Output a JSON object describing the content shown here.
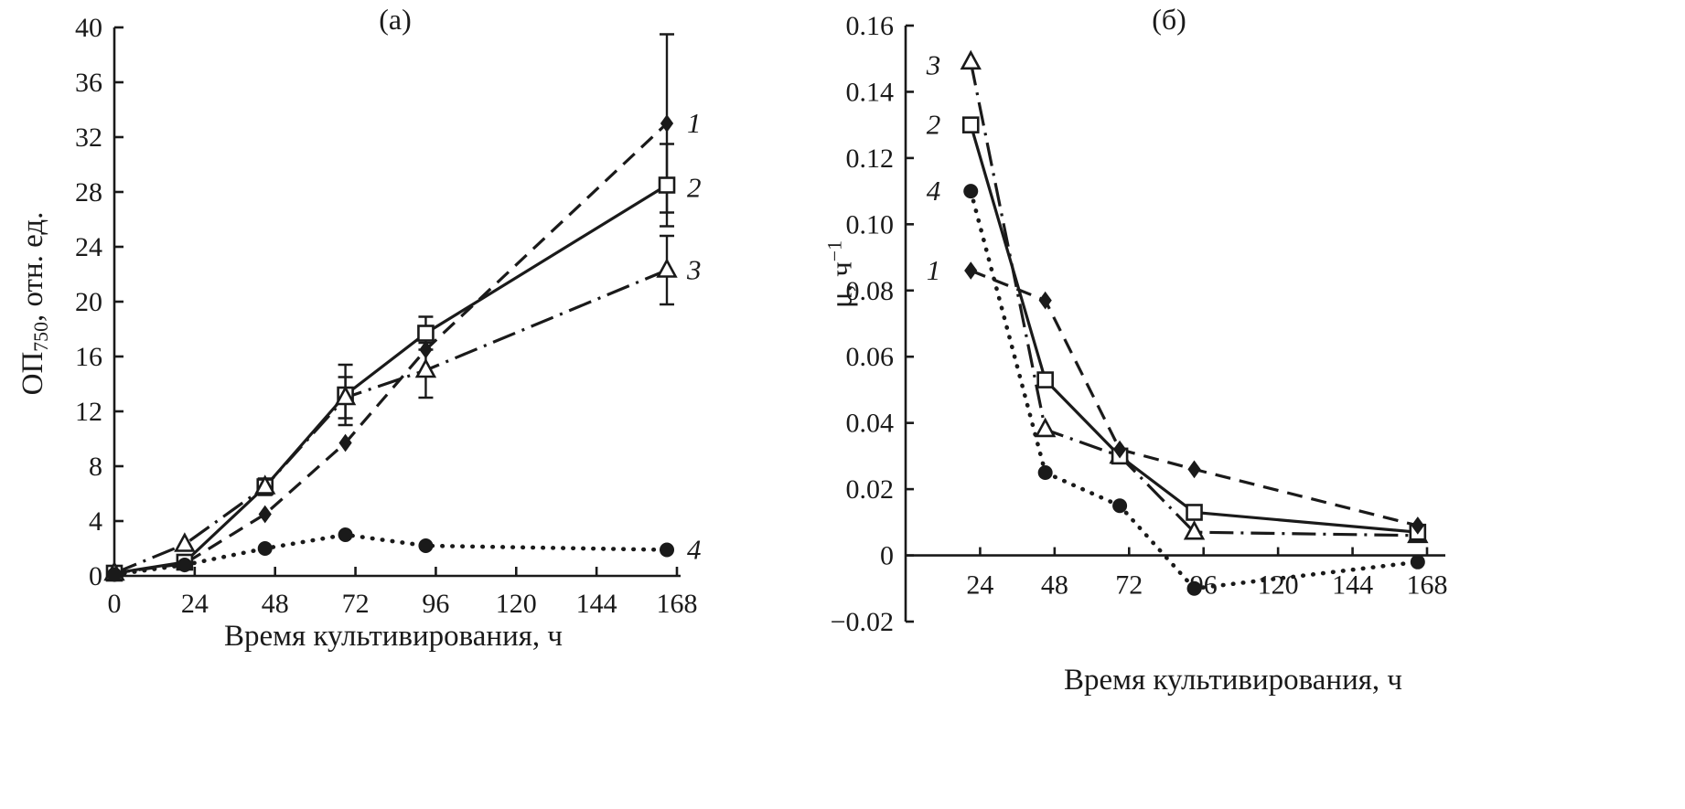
{
  "figure": {
    "panels": [
      {
        "title": "(а)",
        "xlabel": "Время культивирования, ч",
        "ylabel": {
          "main": "ОП",
          "sub": "750",
          "rest": ", отн. ед."
        }
      },
      {
        "title": "(б)",
        "xlabel": "Время культивирования, ч",
        "ylabel": {
          "main": "μ, ч",
          "sup": "−1"
        }
      }
    ]
  },
  "chart_data": [
    {
      "type": "line",
      "panel": "(а)",
      "title": "(а)",
      "xlabel": "Время культивирования, ч",
      "ylabel": "ОП750, отн. ед.",
      "xlim": [
        0,
        168
      ],
      "ylim": [
        0,
        40
      ],
      "grid": false,
      "legend": "series numbers at right ends of curves",
      "xticks": [
        0,
        24,
        48,
        72,
        96,
        120,
        144,
        168
      ],
      "xtick_labels": [
        "0",
        "24",
        "48",
        "72",
        "96",
        "120",
        "144",
        "168"
      ],
      "yticks": [
        0,
        4,
        8,
        12,
        16,
        20,
        24,
        28,
        32,
        36,
        40
      ],
      "ytick_labels": [
        "0",
        "4",
        "8",
        "12",
        "16",
        "20",
        "24",
        "28",
        "32",
        "36",
        "40"
      ],
      "x": [
        0,
        21,
        45,
        69,
        93,
        165
      ],
      "series": [
        {
          "name": "1",
          "marker": "diamond-filled",
          "line": "dashed",
          "values": [
            0.2,
            0.9,
            4.5,
            9.7,
            16.5,
            33.0
          ],
          "err": [
            0,
            0,
            0,
            0,
            0,
            6.5
          ],
          "label_pos": [
            171,
            33.0
          ]
        },
        {
          "name": "2",
          "marker": "square-open",
          "line": "solid",
          "values": [
            0.2,
            1.0,
            6.5,
            13.2,
            17.7,
            28.5
          ],
          "err": [
            0,
            0,
            0.6,
            2.2,
            1.2,
            3.0
          ],
          "label_pos": [
            171,
            28.3
          ]
        },
        {
          "name": "3",
          "marker": "triangle-open",
          "line": "dashdot",
          "values": [
            0.2,
            2.3,
            6.5,
            13.0,
            15.0,
            22.3
          ],
          "err": [
            0,
            0,
            0,
            1.5,
            2.0,
            2.5
          ],
          "label_pos": [
            171,
            22.3
          ]
        },
        {
          "name": "4",
          "marker": "circle-filled",
          "line": "dotted",
          "values": [
            0.1,
            0.8,
            2.0,
            3.0,
            2.2,
            1.9
          ],
          "err": [
            0,
            0,
            0,
            0,
            0,
            0
          ],
          "label_pos": [
            171,
            1.9
          ]
        }
      ]
    },
    {
      "type": "line",
      "panel": "(б)",
      "title": "(б)",
      "xlabel": "Время культивирования, ч",
      "ylabel": "μ, ч−1",
      "xlim": [
        0,
        168
      ],
      "ylim": [
        -0.02,
        0.16
      ],
      "grid": false,
      "x_axis_at": 0,
      "legend": "series numbers at left of first points",
      "xticks": [
        24,
        48,
        72,
        96,
        120,
        144,
        168
      ],
      "xtick_labels": [
        "24",
        "48",
        "72",
        "96",
        "120",
        "144",
        "168"
      ],
      "yticks": [
        -0.02,
        0,
        0.02,
        0.04,
        0.06,
        0.08,
        0.1,
        0.12,
        0.14,
        0.16
      ],
      "ytick_labels": [
        "−0.02",
        "0",
        "0.02",
        "0.04",
        "0.06",
        "0.08",
        "0.10",
        "0.12",
        "0.14",
        "0.16"
      ],
      "x": [
        21,
        45,
        69,
        93,
        165
      ],
      "series": [
        {
          "name": "3",
          "marker": "triangle-open",
          "line": "dashdot",
          "values": [
            0.149,
            0.038,
            0.03,
            0.007,
            0.006
          ],
          "label_pos": [
            9,
            0.148
          ],
          "label_anchor": "middle"
        },
        {
          "name": "2",
          "marker": "square-open",
          "line": "solid",
          "values": [
            0.13,
            0.053,
            0.03,
            0.013,
            0.007
          ],
          "label_pos": [
            9,
            0.13
          ],
          "label_anchor": "middle"
        },
        {
          "name": "4",
          "marker": "circle-filled",
          "line": "dotted",
          "values": [
            0.11,
            0.025,
            0.015,
            -0.01,
            -0.002
          ],
          "label_pos": [
            9,
            0.11
          ],
          "label_anchor": "middle"
        },
        {
          "name": "1",
          "marker": "diamond-filled",
          "line": "dashed",
          "values": [
            0.086,
            0.077,
            0.032,
            0.026,
            0.009
          ],
          "label_pos": [
            9,
            0.086
          ],
          "label_anchor": "middle"
        }
      ]
    }
  ],
  "colors": {
    "ink": "#1a1a1a",
    "background": "#ffffff"
  }
}
